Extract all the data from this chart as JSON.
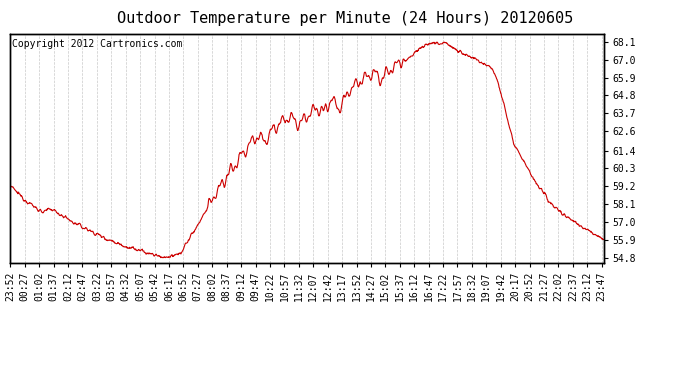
{
  "title": "Outdoor Temperature per Minute (24 Hours) 20120605",
  "copyright_text": "Copyright 2012 Cartronics.com",
  "yticks": [
    54.8,
    55.9,
    57.0,
    58.1,
    59.2,
    60.3,
    61.4,
    62.6,
    63.7,
    64.8,
    65.9,
    67.0,
    68.1
  ],
  "ylim": [
    54.5,
    68.6
  ],
  "xlim_minutes": 1441,
  "start_hour": 23,
  "start_minute_of_day": 52,
  "x_tick_step": 35,
  "line_color": "#cc0000",
  "background_color": "#ffffff",
  "grid_color": "#bbbbbb",
  "title_fontsize": 11,
  "copyright_fontsize": 7,
  "tick_fontsize": 7,
  "keypoints": [
    [
      0,
      59.2
    ],
    [
      30,
      58.5
    ],
    [
      60,
      57.9
    ],
    [
      80,
      57.6
    ],
    [
      100,
      57.8
    ],
    [
      120,
      57.5
    ],
    [
      150,
      57.0
    ],
    [
      190,
      56.5
    ],
    [
      230,
      56.0
    ],
    [
      280,
      55.5
    ],
    [
      330,
      55.1
    ],
    [
      365,
      54.85
    ],
    [
      385,
      54.8
    ],
    [
      410,
      55.0
    ],
    [
      440,
      56.2
    ],
    [
      470,
      57.5
    ],
    [
      500,
      58.8
    ],
    [
      530,
      60.0
    ],
    [
      560,
      61.0
    ],
    [
      580,
      61.8
    ],
    [
      600,
      62.3
    ],
    [
      620,
      62.0
    ],
    [
      640,
      62.8
    ],
    [
      660,
      63.2
    ],
    [
      680,
      63.5
    ],
    [
      700,
      63.0
    ],
    [
      720,
      63.5
    ],
    [
      740,
      64.0
    ],
    [
      760,
      63.8
    ],
    [
      780,
      64.5
    ],
    [
      800,
      64.0
    ],
    [
      820,
      65.0
    ],
    [
      840,
      65.5
    ],
    [
      860,
      65.9
    ],
    [
      880,
      66.2
    ],
    [
      900,
      65.8
    ],
    [
      920,
      66.3
    ],
    [
      940,
      66.8
    ],
    [
      960,
      67.0
    ],
    [
      980,
      67.4
    ],
    [
      1000,
      67.8
    ],
    [
      1020,
      68.0
    ],
    [
      1040,
      68.05
    ],
    [
      1055,
      68.1
    ],
    [
      1070,
      67.8
    ],
    [
      1090,
      67.5
    ],
    [
      1110,
      67.2
    ],
    [
      1130,
      67.0
    ],
    [
      1150,
      66.8
    ],
    [
      1170,
      66.5
    ],
    [
      1185,
      65.5
    ],
    [
      1200,
      64.0
    ],
    [
      1220,
      62.0
    ],
    [
      1250,
      60.5
    ],
    [
      1280,
      59.2
    ],
    [
      1310,
      58.2
    ],
    [
      1340,
      57.5
    ],
    [
      1370,
      57.0
    ],
    [
      1400,
      56.5
    ],
    [
      1420,
      56.2
    ],
    [
      1440,
      55.9
    ]
  ]
}
